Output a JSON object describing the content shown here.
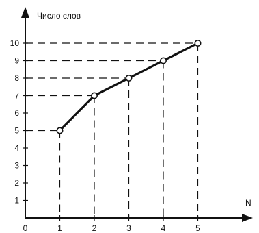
{
  "chart_data": {
    "type": "line",
    "title": "",
    "xlabel": "N",
    "ylabel": "Число слов",
    "origin_label": "0",
    "x": [
      1,
      2,
      3,
      4,
      5
    ],
    "series": [
      {
        "values": [
          5,
          7,
          8,
          9,
          10
        ]
      }
    ],
    "xlim": [
      0,
      5
    ],
    "ylim": [
      0,
      10
    ],
    "xticks": [
      "1",
      "2",
      "3",
      "4",
      "5"
    ],
    "yticks": [
      "1",
      "2",
      "3",
      "4",
      "5",
      "6",
      "7",
      "8",
      "9",
      "10"
    ],
    "grid": false,
    "dashed_guides": true,
    "line_color": "#111111",
    "marker": "open-circle"
  }
}
